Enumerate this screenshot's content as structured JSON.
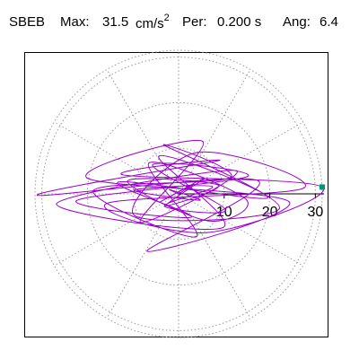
{
  "header": {
    "station": "SBEB",
    "max_label": "Max:",
    "max_value": "31.5",
    "max_unit": "cm/s",
    "max_unit_exp": "2",
    "per_label": "Per:",
    "per_value": "0.200 s",
    "ang_label": "Ang:",
    "ang_value": "6.4"
  },
  "chart_data": {
    "type": "scatter",
    "title": "",
    "xlabel": "",
    "ylabel": "",
    "radial_axis": {
      "max": 31.5,
      "tick_values": [
        10,
        20,
        30
      ],
      "tick_labels": [
        "10",
        "20",
        "30"
      ],
      "ring_values": [
        10,
        20,
        30
      ]
    },
    "spoke_angles_deg": [
      0,
      30,
      60,
      90,
      120,
      150,
      180,
      210,
      240,
      270,
      300,
      330
    ],
    "grid": true,
    "series": [
      {
        "color": "#9900cc",
        "x": [
          0,
          3.2,
          -4.1,
          5.6,
          -2.8,
          8.7,
          -11.2,
          6.3,
          14.8,
          -6.5,
          3.9,
          -18.7,
          11.4,
          -3.2,
          22.1,
          -9.6,
          4.2,
          27.5,
          -15.8,
          6.1,
          31.5,
          -12.3,
          8.8,
          -31,
          17.4,
          -6.9,
          24.3,
          -20.1,
          5.3,
          -8.4,
          12.6,
          -26.8,
          9.7,
          -4.3,
          19.5,
          -13.2,
          2.8,
          -22.4,
          15.1,
          -5.7,
          10.3,
          -3.1,
          7.4,
          -9.8,
          4.6,
          -1.9,
          0
        ],
        "y": [
          0,
          2.1,
          -1.8,
          3.4,
          -2.6,
          1.9,
          2.8,
          -5.9,
          -1.2,
          6.8,
          -9.4,
          0.7,
          3.6,
          10.7,
          -3.2,
          -4.8,
          9.1,
          1.3,
          -2.1,
          -8.5,
          1.5,
          4.2,
          7.3,
          -0.3,
          2.9,
          -12.6,
          -1.8,
          3.5,
          11.5,
          -6.2,
          5.1,
          -2.2,
          -7.4,
          8.3,
          -0.9,
          2.6,
          -5.1,
          -1.5,
          3.8,
          6.4,
          -3.5,
          -2.7,
          1.6,
          0.8,
          -1.4,
          0.9,
          0
        ]
      }
    ],
    "endpoint_marker": {
      "color": "#009977",
      "x": 31.5,
      "y": 1.5
    }
  }
}
